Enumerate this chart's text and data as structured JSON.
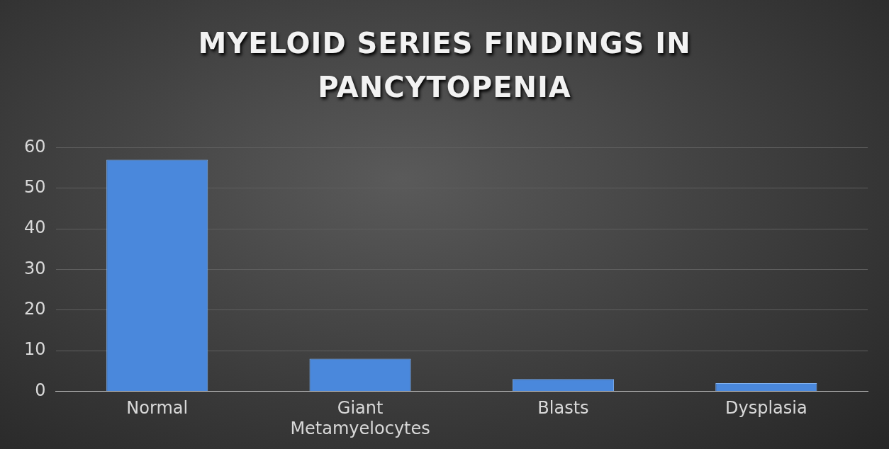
{
  "chart_data": {
    "type": "bar",
    "title": "MYELOID SERIES FINDINGS IN PANCYTOPENIA",
    "categories": [
      "Normal",
      "Giant Metamyelocytes",
      "Blasts",
      "Dysplasia"
    ],
    "values": [
      57,
      8,
      3,
      2
    ],
    "color": "#4a88dc",
    "ylim": [
      0,
      60
    ],
    "yticks": [
      0,
      10,
      20,
      30,
      40,
      50,
      60
    ],
    "grid": "y"
  }
}
